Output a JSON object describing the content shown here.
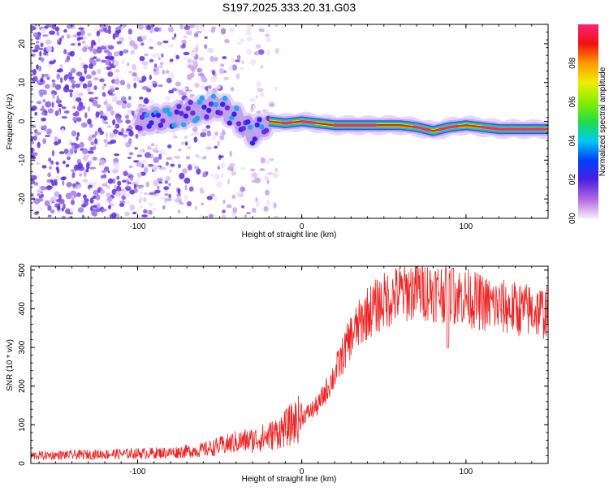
{
  "title": "S197.2025.333.20.31.G03",
  "chart_data": [
    {
      "type": "heatmap",
      "panel": "top",
      "xlabel": "Height of straight line (km)",
      "ylabel": "Frequency (Hz)",
      "xlim": [
        -165,
        150
      ],
      "ylim": [
        -25,
        25
      ],
      "xticks": [
        -100,
        0,
        100
      ],
      "xtick_labels": [
        "-100",
        "0",
        "100"
      ],
      "yticks": [
        20,
        10,
        0,
        -10,
        -20
      ],
      "ytick_labels": [
        "20",
        "10",
        "0",
        "-10",
        "-20"
      ],
      "colorbar": {
        "label": "Normalized spectral amplitude",
        "range": [
          0,
          1
        ],
        "ticks": [
          0.0,
          0.2,
          0.4,
          0.6,
          0.8
        ],
        "tick_labels": [
          "0.0",
          "0.2",
          "0.4",
          "0.6",
          "0.8"
        ]
      },
      "ridge": {
        "x": [
          -100,
          -90,
          -80,
          -70,
          -60,
          -50,
          -40,
          -30,
          -20,
          -10,
          0,
          10,
          20,
          40,
          60,
          70,
          80,
          90,
          100,
          120,
          150
        ],
        "freq": [
          0,
          0.5,
          1,
          2,
          3,
          4,
          1,
          -3,
          0,
          -0.5,
          0,
          -0.5,
          -1,
          -1,
          -1,
          -1.5,
          -2.5,
          -1.5,
          -1,
          -2,
          -2
        ]
      },
      "noise_region_x": [
        -165,
        -25
      ]
    },
    {
      "type": "line",
      "panel": "bottom",
      "xlabel": "Height of straight line (km)",
      "ylabel": "SNR (10 * v/v)",
      "xlim": [
        -165,
        150
      ],
      "ylim": [
        0,
        510
      ],
      "xticks": [
        -100,
        0,
        100
      ],
      "xtick_labels": [
        "-100",
        "0",
        "100"
      ],
      "yticks": [
        0,
        100,
        200,
        300,
        400,
        500
      ],
      "ytick_labels": [
        "0",
        "100",
        "200",
        "300",
        "400",
        "500"
      ],
      "series": [
        {
          "name": "SNR",
          "color": "#ee2222",
          "x": [
            -165,
            -140,
            -120,
            -100,
            -80,
            -60,
            -50,
            -40,
            -30,
            -20,
            -10,
            0,
            10,
            20,
            30,
            40,
            50,
            60,
            70,
            80,
            90,
            100,
            110,
            120,
            130,
            140,
            150
          ],
          "y": [
            20,
            22,
            24,
            26,
            28,
            35,
            45,
            55,
            60,
            70,
            90,
            120,
            150,
            230,
            330,
            390,
            420,
            440,
            450,
            445,
            440,
            430,
            415,
            405,
            400,
            395,
            390
          ]
        }
      ]
    }
  ]
}
